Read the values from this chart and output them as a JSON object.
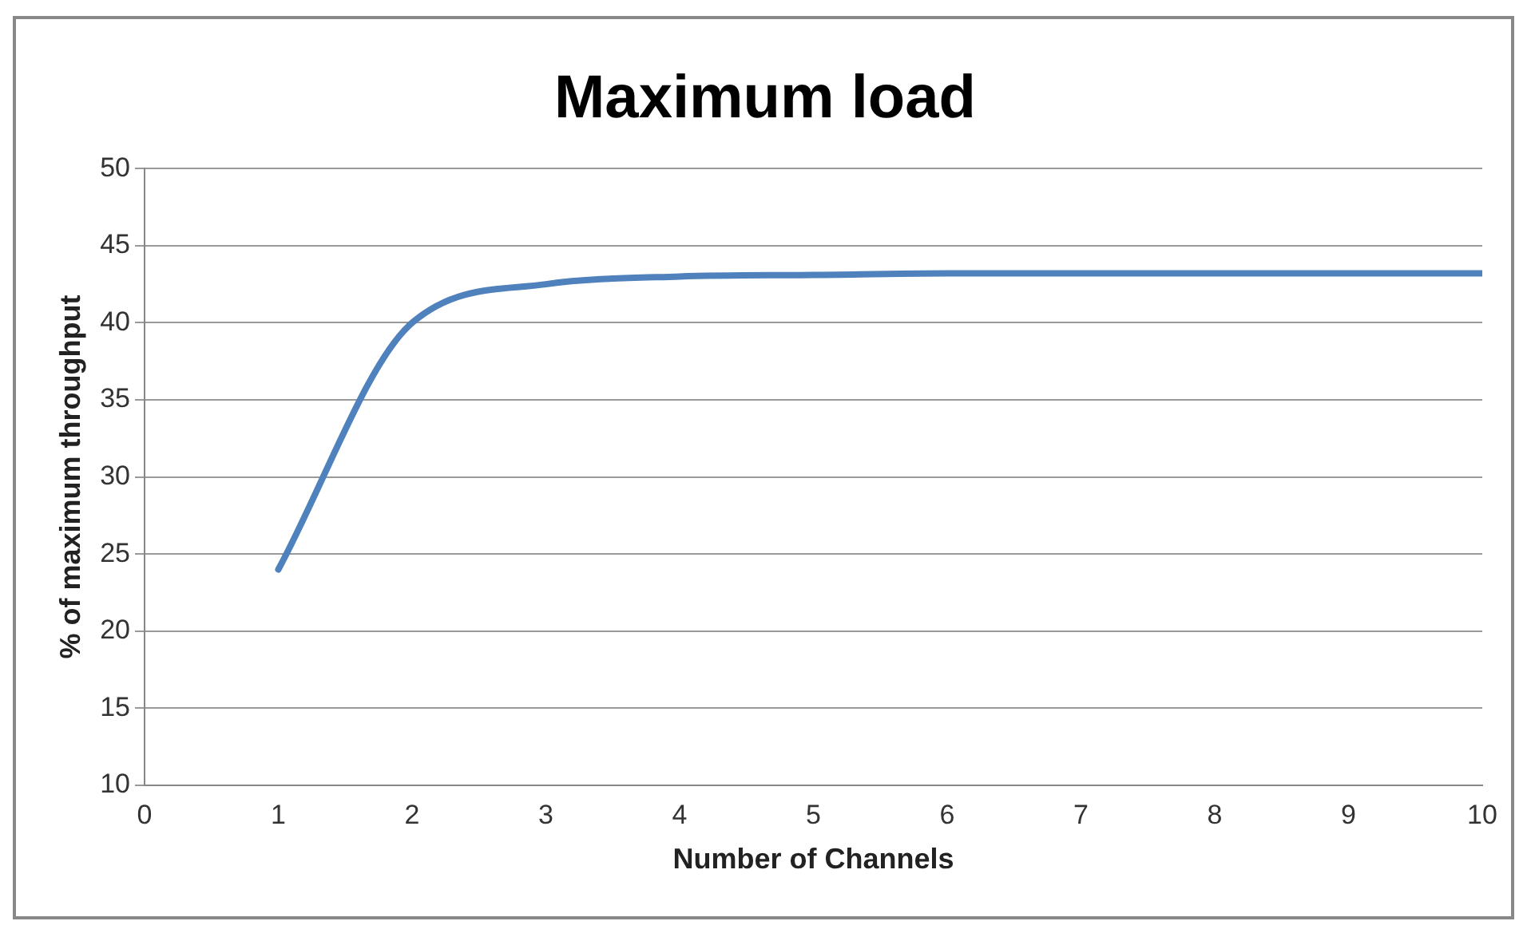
{
  "chart_data": {
    "type": "line",
    "title": "Maximum load",
    "xlabel": "Number of Channels",
    "ylabel": "% of maximum throughput",
    "x": [
      1,
      2,
      3,
      4,
      5,
      6,
      7,
      8,
      9,
      10
    ],
    "series": [
      {
        "color": "#4f81bd",
        "values": [
          24,
          40,
          42.5,
          43,
          43.1,
          43.2,
          43.2,
          43.2,
          43.2,
          43.2
        ]
      }
    ],
    "xlim": [
      0,
      10
    ],
    "xticks": [
      0,
      1,
      2,
      3,
      4,
      5,
      6,
      7,
      8,
      9,
      10
    ],
    "ylim": [
      10,
      50
    ],
    "yticks": [
      10,
      15,
      20,
      25,
      30,
      35,
      40,
      45,
      50
    ],
    "grid": "y",
    "legend": false,
    "marker": "none",
    "line_style": "solid"
  }
}
